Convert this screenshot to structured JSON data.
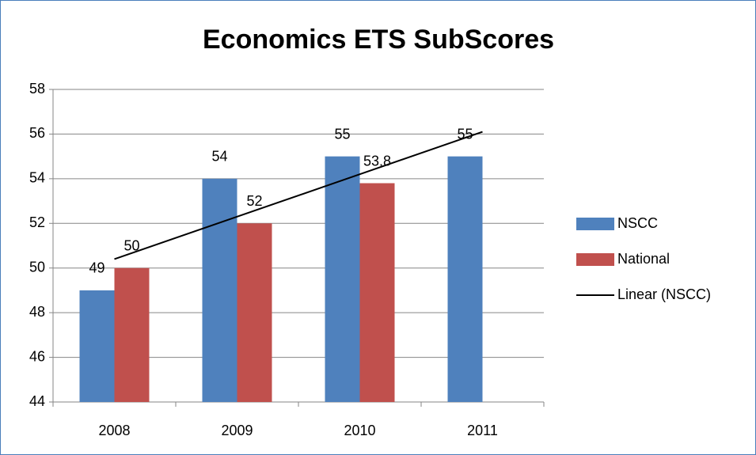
{
  "chart_data": {
    "type": "bar",
    "title": "Economics ETS SubScores",
    "categories": [
      "2008",
      "2009",
      "2010",
      "2011"
    ],
    "series": [
      {
        "name": "NSCC",
        "color": "#4f81bd",
        "values": [
          49,
          54,
          55,
          55
        ]
      },
      {
        "name": "National",
        "color": "#c0504d",
        "values": [
          50,
          52,
          53.8,
          null
        ]
      }
    ],
    "trendline": {
      "name": "Linear (NSCC)",
      "color": "#000000",
      "values": [
        50.4,
        52.3,
        54.2,
        56.1
      ]
    },
    "ylim": [
      44,
      58
    ],
    "yticks": [
      44,
      46,
      48,
      50,
      52,
      54,
      56,
      58
    ],
    "grid": true,
    "legend": "right"
  }
}
